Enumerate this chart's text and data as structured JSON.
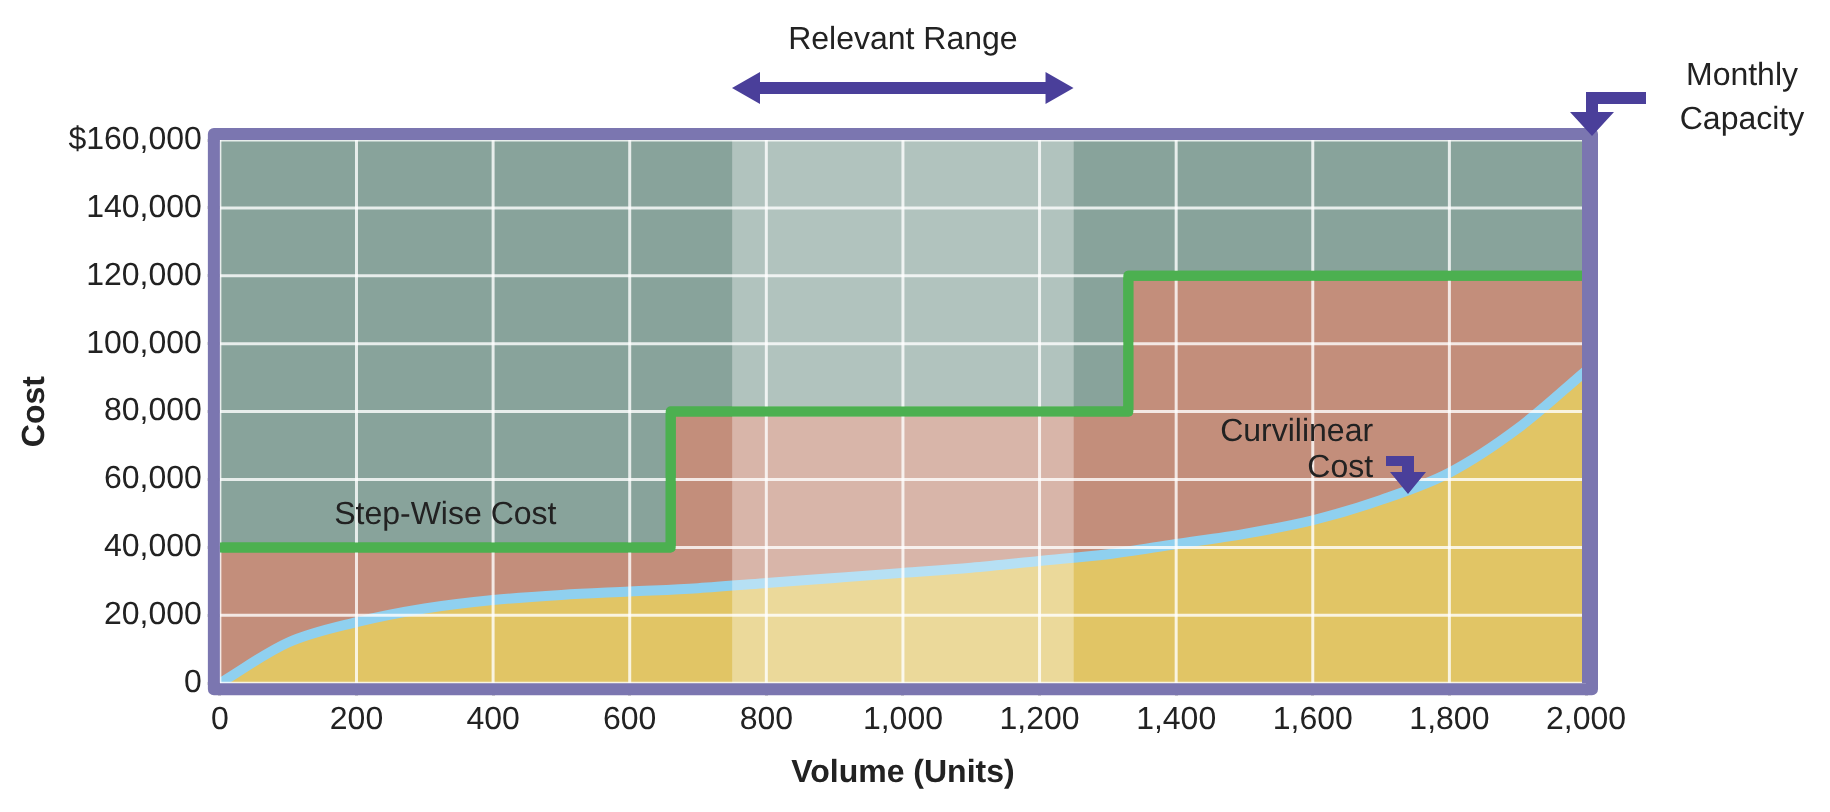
{
  "chart_data": {
    "type": "area",
    "xlabel": "Volume (Units)",
    "ylabel": "Cost",
    "xlim": [
      0,
      2000
    ],
    "ylim": [
      0,
      160000
    ],
    "xticks": [
      0,
      200,
      400,
      600,
      800,
      {
        "value": 1000,
        "label": "1,000"
      },
      {
        "value": 1200,
        "label": "1,200"
      },
      {
        "value": 1400,
        "label": "1,400"
      },
      {
        "value": 1600,
        "label": "1,600"
      },
      {
        "value": 1800,
        "label": "1,800"
      },
      {
        "value": 2000,
        "label": "2,000"
      }
    ],
    "yticks": [
      0,
      {
        "value": 20000,
        "label": "20,000"
      },
      {
        "value": 40000,
        "label": "40,000"
      },
      {
        "value": 60000,
        "label": "60,000"
      },
      {
        "value": 80000,
        "label": "80,000"
      },
      {
        "value": 100000,
        "label": "100,000"
      },
      {
        "value": 120000,
        "label": "120,000"
      },
      {
        "value": 140000,
        "label": "140,000"
      },
      {
        "value": 160000,
        "label": "$160,000"
      }
    ],
    "grid": true,
    "legend": false,
    "series": [
      {
        "color": "#c38e7b",
        "x": [
          0,
          660,
          660,
          1330,
          1330,
          2000
        ],
        "values": [
          40000,
          40000,
          80000,
          80000,
          120000,
          120000
        ]
      },
      {
        "name": "Step-Wise Cost",
        "type": "step",
        "color": "#4cb050",
        "x": [
          0,
          660,
          1330,
          2000
        ],
        "values": [
          40000,
          80000,
          120000,
          120000
        ]
      },
      {
        "name": "Curvilinear Cost",
        "color": "#e1c565",
        "x": [
          0,
          100,
          200,
          300,
          400,
          500,
          600,
          700,
          800,
          900,
          1000,
          1100,
          1200,
          1300,
          1400,
          1500,
          1600,
          1700,
          1800,
          1900,
          2000
        ],
        "values": [
          0,
          12000,
          18000,
          22000,
          24500,
          26000,
          27000,
          28000,
          29500,
          31000,
          32500,
          34000,
          36000,
          38000,
          41000,
          44000,
          48000,
          54000,
          62000,
          75000,
          92000
        ]
      }
    ],
    "bands": [
      {
        "axis": "x",
        "from": 750,
        "to": 1250,
        "label": "Relevant Range",
        "color": "#ffffff"
      }
    ],
    "ref_lines": [
      {
        "axis": "x",
        "value": 2000,
        "label": "Monthly Capacity",
        "color": "#7b76b0"
      }
    ]
  }
}
